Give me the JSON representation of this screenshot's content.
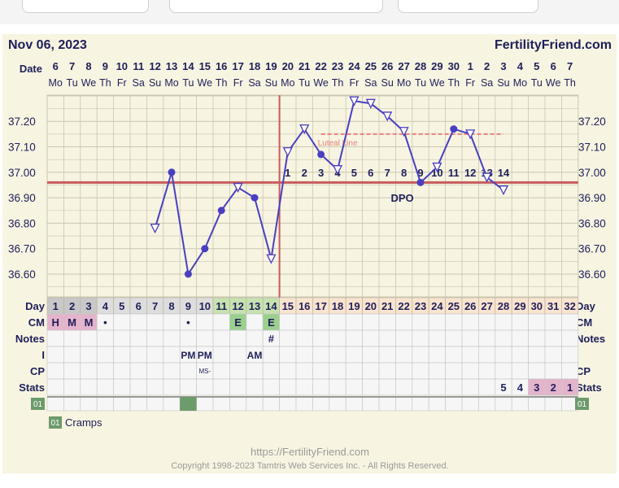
{
  "header": {
    "date": "Nov 06, 2023",
    "site": "FertilityFriend.com"
  },
  "row_labels": {
    "date": "Date",
    "day": "Day",
    "cm": "CM",
    "notes": "Notes",
    "i": "I",
    "cp": "CP",
    "stats": "Stats"
  },
  "dates": [
    "6",
    "7",
    "8",
    "9",
    "10",
    "11",
    "12",
    "13",
    "14",
    "15",
    "16",
    "17",
    "18",
    "19",
    "20",
    "21",
    "22",
    "23",
    "24",
    "25",
    "26",
    "27",
    "28",
    "29",
    "30",
    "1",
    "2",
    "3",
    "4",
    "5",
    "6",
    "7"
  ],
  "weekdays": [
    "Mo",
    "Tu",
    "We",
    "Th",
    "Fr",
    "Sa",
    "Su",
    "Mo",
    "Tu",
    "We",
    "Th",
    "Fr",
    "Sa",
    "Su",
    "Mo",
    "Tu",
    "We",
    "Th",
    "Fr",
    "Sa",
    "Su",
    "Mo",
    "Tu",
    "We",
    "Th",
    "Fr",
    "Sa",
    "Su",
    "Mo",
    "Tu",
    "We",
    "Th"
  ],
  "days": [
    "1",
    "2",
    "3",
    "4",
    "5",
    "6",
    "7",
    "8",
    "9",
    "10",
    "11",
    "12",
    "13",
    "14",
    "15",
    "16",
    "17",
    "18",
    "19",
    "20",
    "21",
    "22",
    "23",
    "24",
    "25",
    "26",
    "27",
    "28",
    "29",
    "30",
    "31",
    "32"
  ],
  "day_colors": [
    "#c8c8c8",
    "#c8c8c8",
    "#c8c8c8",
    "#dddddd",
    "#dddddd",
    "#dddddd",
    "#dddddd",
    "#dddddd",
    "#dddddd",
    "#dddddd",
    "#c6e2b0",
    "#c6e2b0",
    "#c6e2b0",
    "#c6e2b0",
    "#f9e4cf",
    "#f9e4cf",
    "#f9e4cf",
    "#f9e4cf",
    "#f9e4cf",
    "#f9e4cf",
    "#f9e4cf",
    "#f9e4cf",
    "#f9e4cf",
    "#f9e4cf",
    "#f9e4cf",
    "#f9e4cf",
    "#f9e4cf",
    "#f9e4cf",
    "#f9e4cf",
    "#f9e4cf",
    "#f9e4cf",
    "#f9e4cf"
  ],
  "cm": [
    {
      "day": 1,
      "text": "H",
      "bg": "#e4b4cc"
    },
    {
      "day": 2,
      "text": "M",
      "bg": "#e4b4cc"
    },
    {
      "day": 3,
      "text": "M",
      "bg": "#e4b4cc"
    },
    {
      "day": 4,
      "text": "•",
      "bg": ""
    },
    {
      "day": 9,
      "text": "•",
      "bg": ""
    },
    {
      "day": 12,
      "text": "E",
      "bg": "#9bd08e"
    },
    {
      "day": 14,
      "text": "E",
      "bg": "#9bd08e"
    }
  ],
  "notes": [
    {
      "day": 14,
      "text": "#"
    }
  ],
  "intercourse": [
    {
      "day": 9,
      "text": "PM"
    },
    {
      "day": 10,
      "text": "PM"
    },
    {
      "day": 13,
      "text": "AM"
    }
  ],
  "cp": [
    {
      "day": 10,
      "text": "MS-"
    }
  ],
  "stats": [
    {
      "day": 28,
      "text": "5",
      "bg": ""
    },
    {
      "day": 29,
      "text": "4",
      "bg": ""
    },
    {
      "day": 30,
      "text": "3",
      "bg": "#e4b4cc"
    },
    {
      "day": 31,
      "text": "2",
      "bg": "#e4b4cc"
    },
    {
      "day": 32,
      "text": "1",
      "bg": "#e4b4cc"
    }
  ],
  "symptom_row": {
    "badge": "01",
    "marked_days": [
      9
    ]
  },
  "legend": {
    "badge": "01",
    "label": "Cramps"
  },
  "footer": {
    "url": "https://FertilityFriend.com",
    "copyright": "Copyright 1998-2023 Tamtris Web Services Inc. - All Rights Reserved."
  },
  "colors": {
    "line": "#4a3fc0",
    "coverline": "#c75c5c",
    "luteal": "#e88080",
    "grid": "#c9c6b0",
    "panel": "#f7f4e1",
    "symptom": "#6c9b6c"
  },
  "chart_data": {
    "type": "line",
    "ylabel": "",
    "ylim": [
      36.53,
      37.3
    ],
    "yticks": [
      "36.60",
      "36.70",
      "36.80",
      "36.90",
      "37.00",
      "37.10",
      "37.20"
    ],
    "x_days": [
      7,
      8,
      9,
      10,
      11,
      12,
      13,
      14,
      15,
      16,
      17,
      18,
      19,
      20,
      21,
      22,
      23,
      24,
      25,
      26,
      27,
      28
    ],
    "temps": [
      36.78,
      37.0,
      36.6,
      36.7,
      36.85,
      36.94,
      36.9,
      36.66,
      37.08,
      37.17,
      37.07,
      37.01,
      37.28,
      37.27,
      37.22,
      37.16,
      36.96,
      37.02,
      37.17,
      37.15,
      36.98,
      36.93
    ],
    "markers": [
      "open",
      "filled",
      "filled",
      "filled",
      "filled",
      "open",
      "filled",
      "open",
      "open",
      "open",
      "filled",
      "open",
      "open",
      "open",
      "open",
      "open",
      "filled",
      "open",
      "filled",
      "open",
      "open",
      "open"
    ],
    "coverline": 36.96,
    "ovulation_day": 14,
    "luteal_line": {
      "value": 37.15,
      "from_day": 17,
      "to_day": 28,
      "label": "Luteal Line"
    },
    "dpo_label": "DPO",
    "dpo_numbers": [
      "1",
      "2",
      "3",
      "4",
      "5",
      "6",
      "7",
      "8",
      "9",
      "10",
      "11",
      "12",
      "13",
      "14"
    ]
  }
}
